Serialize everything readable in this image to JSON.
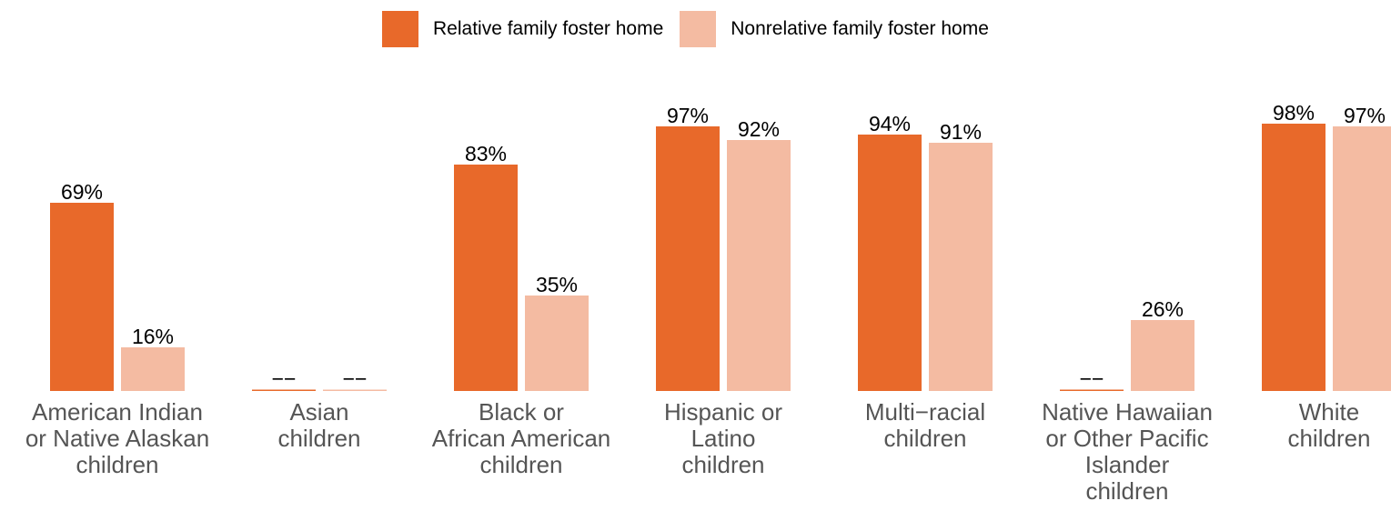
{
  "legend": [
    {
      "label": "Relative family foster home",
      "color": "#E8692A"
    },
    {
      "label": "Nonrelative family foster home",
      "color": "#F4BBA2"
    }
  ],
  "chart_data": {
    "type": "bar",
    "ylim": [
      0,
      100
    ],
    "grid": false,
    "legend_position": "top-center",
    "categories": [
      "American Indian\nor Native Alaskan\nchildren",
      "Asian\nchildren",
      "Black or\nAfrican American\nchildren",
      "Hispanic or\nLatino\nchildren",
      "Multi−racial\nchildren",
      "Native Hawaiian\nor Other Pacific\nIslander\nchildren",
      "White\nchildren"
    ],
    "series": [
      {
        "name": "Relative family foster home",
        "color": "#E8692A",
        "values": [
          69,
          null,
          83,
          97,
          94,
          null,
          98
        ],
        "labels": [
          "69%",
          "−−",
          "83%",
          "97%",
          "94%",
          "−−",
          "98%"
        ]
      },
      {
        "name": "Nonrelative family foster home",
        "color": "#F4BBA2",
        "values": [
          16,
          null,
          35,
          92,
          91,
          26,
          97
        ],
        "labels": [
          "16%",
          "−−",
          "35%",
          "92%",
          "91%",
          "26%",
          "97%"
        ]
      }
    ]
  }
}
